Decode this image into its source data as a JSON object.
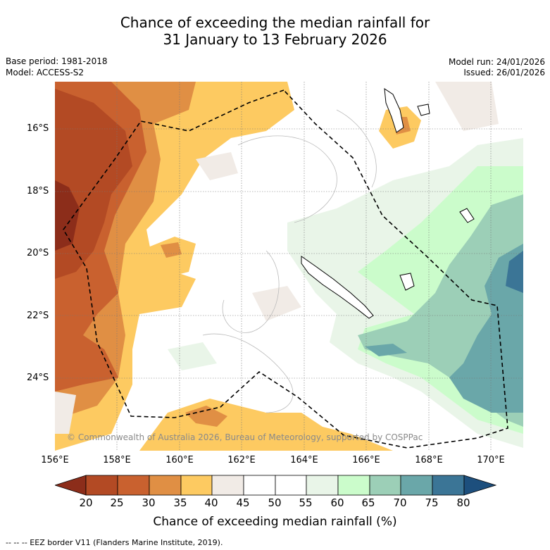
{
  "header": {
    "title_line1": "Chance of exceeding the median rainfall for",
    "title_line2": "31 January to 13 February 2026",
    "base_period": "Base period: 1981-2018",
    "model": "Model: ACCESS-S2",
    "model_run": "Model run: 24/01/2026",
    "issued": "Issued: 26/01/2026"
  },
  "axes": {
    "lat_labels": [
      "16°S",
      "18°S",
      "20°S",
      "22°S",
      "24°S"
    ],
    "lon_labels": [
      "156°E",
      "158°E",
      "160°E",
      "162°E",
      "164°E",
      "166°E",
      "168°E",
      "170°E"
    ]
  },
  "map": {
    "copyright": "© Commonwealth of Australia 2026, Bureau of Meteorology, supported by COSPPac"
  },
  "colorbar": {
    "ticks": [
      "20",
      "25",
      "30",
      "35",
      "40",
      "45",
      "50",
      "55",
      "60",
      "65",
      "70",
      "75",
      "80"
    ],
    "colors": [
      "#8c2d1a",
      "#b34a24",
      "#c9612f",
      "#e08f44",
      "#fdca61",
      "#f1ebe6",
      "#ffffff",
      "#ffffff",
      "#e9f5e8",
      "#cbfccb",
      "#9ccfb7",
      "#6aa7a9",
      "#3b7596",
      "#1d4f7d"
    ],
    "label": "Chance of exceeding median rainfall (%)"
  },
  "legend": {
    "eez": "--  --  -- EEZ border V11 (Flanders Marine Institute, 2019)."
  }
}
